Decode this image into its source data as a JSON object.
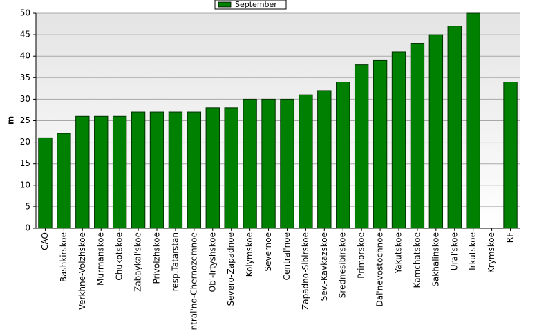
{
  "chart_data": {
    "type": "bar",
    "y_label": "m",
    "categories": [
      "CAO",
      "Bashkirskoe",
      "Verkhne-Volzhskoe",
      "Murmanskoe",
      "Chukotskoe",
      "Zabaykal'skoe",
      "Privolzhskoe",
      "resp.Tatarstan",
      "Central'no-Chernozemnoe",
      "Ob'-Irtyshskoe",
      "Severo-Zapadnoe",
      "Kolymskoe",
      "Severnoe",
      "Central'noe",
      "Zapadno-Sibirskoe",
      "Sev.-Kavkazskoe",
      "Srednesibirskoe",
      "Primorskoe",
      "Dal'nevostochnoe",
      "Yakutskoe",
      "Kamchatskoe",
      "Sakhalinskoe",
      "Ural'skoe",
      "Irkutskoe",
      "Krymskoe",
      "RF"
    ],
    "series": [
      {
        "name": "September",
        "color": "#008000",
        "values": [
          21,
          22,
          26,
          26,
          26,
          27,
          27,
          27,
          27,
          28,
          28,
          30,
          30,
          30,
          31,
          32,
          34,
          38,
          39,
          41,
          43,
          45,
          47,
          50,
          null,
          34
        ]
      }
    ],
    "ylim": [
      0,
      50
    ],
    "yticks": [
      0,
      5,
      10,
      15,
      20,
      25,
      30,
      35,
      40,
      45,
      50
    ],
    "grid": true
  }
}
